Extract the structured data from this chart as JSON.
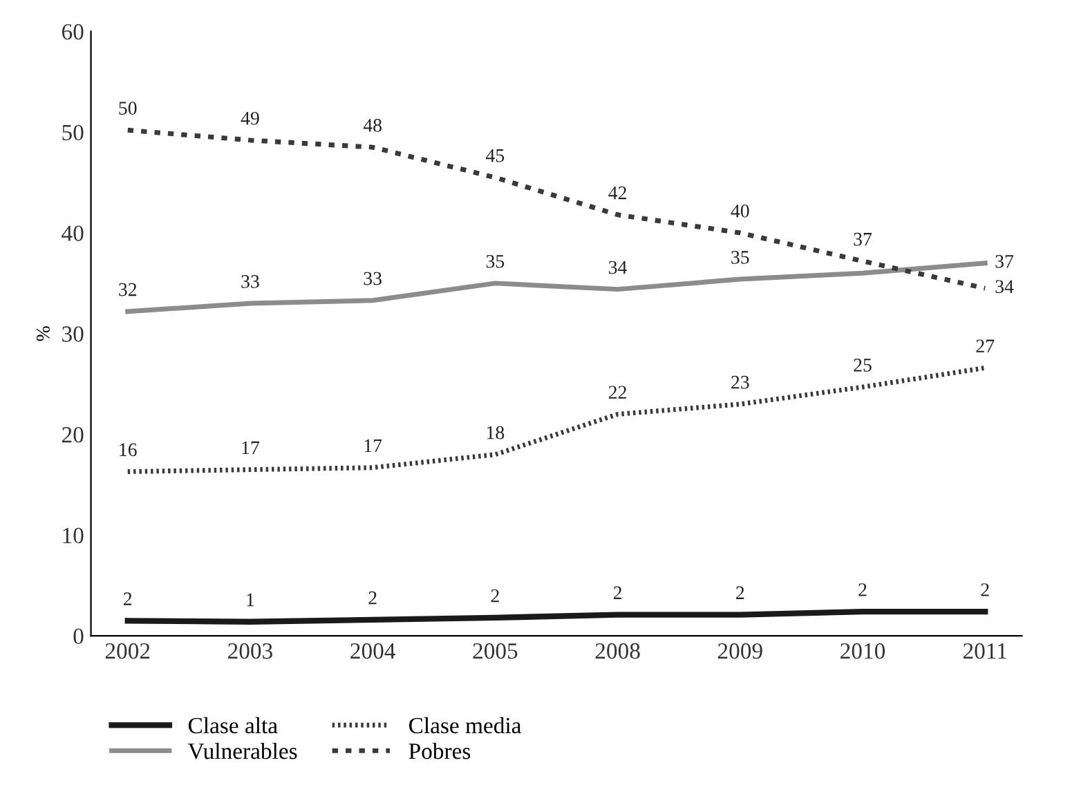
{
  "chart_data": {
    "type": "line",
    "ylabel": "%",
    "categories": [
      "2002",
      "2003",
      "2004",
      "2005",
      "2008",
      "2009",
      "2010",
      "2011"
    ],
    "series": [
      {
        "name": "Clase alta",
        "color": "#1a1a1a",
        "line_style": "solid",
        "values": [
          1.5,
          1.4,
          1.6,
          1.8,
          2.1,
          2.1,
          2.4,
          2.4
        ],
        "value_labels": [
          "2",
          "1",
          "2",
          "2",
          "2",
          "2",
          "2",
          "2"
        ]
      },
      {
        "name": "Vulnerables",
        "color": "#8c8c8c",
        "line_style": "solid",
        "values": [
          32.2,
          33.0,
          33.3,
          35.0,
          34.4,
          35.4,
          36.0,
          37.0
        ],
        "value_labels": [
          "32",
          "33",
          "33",
          "35",
          "34",
          "35",
          null,
          "37"
        ]
      },
      {
        "name": "Clase media",
        "color": "#3a3a3a",
        "line_style": "densely dotted",
        "values": [
          16.3,
          16.5,
          16.7,
          18.0,
          22.0,
          23.0,
          24.7,
          26.6
        ],
        "value_labels": [
          "16",
          "17",
          "17",
          "18",
          "22",
          "23",
          "25",
          "27"
        ]
      },
      {
        "name": "Pobres",
        "color": "#3a3a3a",
        "line_style": "dotted",
        "values": [
          50.2,
          49.2,
          48.5,
          45.5,
          41.8,
          40.0,
          37.2,
          34.5
        ],
        "value_labels": [
          "50",
          "49",
          "48",
          "45",
          "42",
          "40",
          "37",
          "34"
        ]
      }
    ],
    "ylim": [
      0,
      60
    ],
    "yticks": [
      0,
      10,
      20,
      30,
      40,
      50,
      60
    ],
    "grid": false,
    "legend": "bottom",
    "marker": "none"
  }
}
